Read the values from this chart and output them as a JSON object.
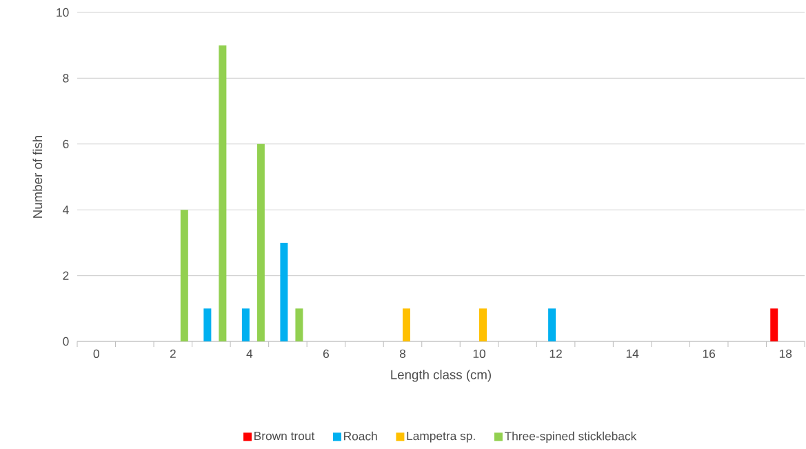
{
  "chart_data": {
    "type": "bar",
    "xlabel": "Length class (cm)",
    "ylabel": "Number of fish",
    "categories": [
      "0",
      null,
      "2",
      null,
      "4",
      null,
      "6",
      null,
      "8",
      null,
      "10",
      null,
      "12",
      null,
      "14",
      null,
      "16",
      null,
      "18"
    ],
    "series": [
      {
        "name": "Brown trout",
        "color": "#ff0000",
        "values": [
          0,
          0,
          0,
          0,
          0,
          0,
          0,
          0,
          0,
          0,
          0,
          0,
          0,
          0,
          0,
          0,
          0,
          0,
          1
        ]
      },
      {
        "name": "Roach",
        "color": "#00b0f0",
        "values": [
          0,
          0,
          0,
          1,
          1,
          3,
          0,
          0,
          0,
          0,
          0,
          0,
          1,
          0,
          0,
          0,
          0,
          0,
          0
        ]
      },
      {
        "name": "Lampetra sp.",
        "color": "#ffc000",
        "values": [
          0,
          0,
          0,
          0,
          0,
          0,
          0,
          0,
          1,
          0,
          1,
          0,
          0,
          0,
          0,
          0,
          0,
          0,
          0
        ]
      },
      {
        "name": "Three-spined stickleback",
        "color": "#92d050",
        "values": [
          0,
          0,
          4,
          9,
          6,
          1,
          0,
          0,
          0,
          0,
          0,
          0,
          0,
          0,
          0,
          0,
          0,
          0,
          0
        ]
      }
    ],
    "ylim": [
      0,
      10
    ],
    "yticks": [
      0,
      2,
      4,
      6,
      8,
      10
    ],
    "grid": "y",
    "legend": "bottom"
  }
}
